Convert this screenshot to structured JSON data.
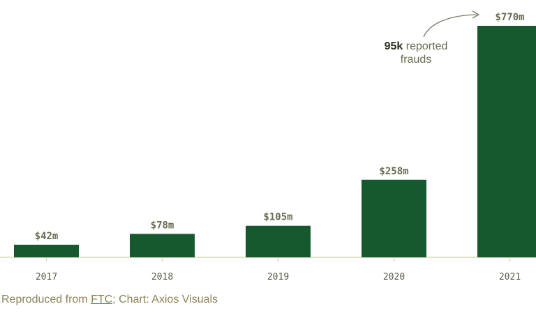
{
  "chart_data": {
    "type": "bar",
    "categories": [
      "2017",
      "2018",
      "2019",
      "2020",
      "2021"
    ],
    "values": [
      42,
      78,
      105,
      258,
      770
    ],
    "value_labels": [
      "$42m",
      "$78m",
      "$105m",
      "$258m",
      "$770m"
    ],
    "ylim": [
      0,
      770
    ],
    "grid": false,
    "bar_color": "#17592e",
    "baseline_color": "#d8d6b8",
    "annotation": {
      "bold_text": "95k",
      "text_line1": " reported",
      "text_line2": "frauds",
      "target_category": "2021"
    }
  },
  "footer": {
    "prefix": "Reproduced from ",
    "link": "FTC",
    "suffix": "; Chart: Axios Visuals"
  }
}
